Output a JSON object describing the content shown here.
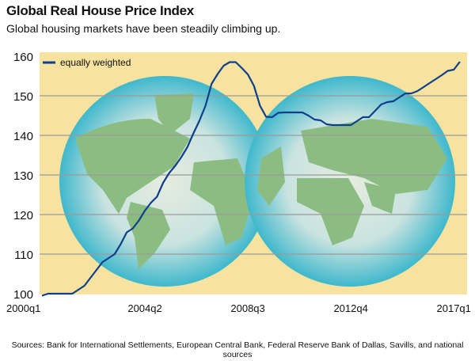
{
  "chart_data": {
    "type": "line",
    "title": "Global Real House Price Index",
    "subtitle": "Global housing markets have been steadily climbing up.",
    "source": "Sources: Bank for International Settlements, European Central Bank, Federal Reserve Bank of Dallas, Savills, and national sources",
    "x_start": "2000q1",
    "x_tick_labels": [
      "2000q1",
      "2004q2",
      "2008q3",
      "2012q4",
      "2017q1"
    ],
    "y_tick_labels": [
      "100",
      "110",
      "120",
      "130",
      "140",
      "150",
      "160"
    ],
    "ylim": [
      100,
      160
    ],
    "grid": "horizontal",
    "legend_placement": "top-left",
    "colors": {
      "line": "#0d3f8c",
      "background": "#f7e39f",
      "grid": "#9a9a9a"
    },
    "series": [
      {
        "name": "equally weighted",
        "values": [
          99.5,
          100,
          100,
          100,
          100,
          100,
          101,
          102,
          104,
          106,
          108,
          109,
          110,
          112.5,
          115.5,
          116.5,
          118.5,
          121,
          123,
          124.5,
          128,
          130.5,
          132.3,
          134.5,
          137,
          140.5,
          143.7,
          147.5,
          153,
          155.5,
          157.6,
          158.5,
          158.5,
          157,
          155.4,
          152.5,
          147.5,
          144.7,
          144.6,
          145.7,
          145.8,
          145.8,
          145.8,
          145.8,
          145,
          144,
          143.8,
          142.8,
          142.6,
          142.6,
          142.6,
          142.6,
          143.6,
          144.6,
          144.6,
          146.2,
          147.8,
          148.4,
          148.6,
          149.6,
          150.6,
          150.6,
          151.2,
          152.2,
          153.2,
          154.2,
          155.2,
          156.3,
          156.6,
          158.6
        ]
      }
    ]
  }
}
